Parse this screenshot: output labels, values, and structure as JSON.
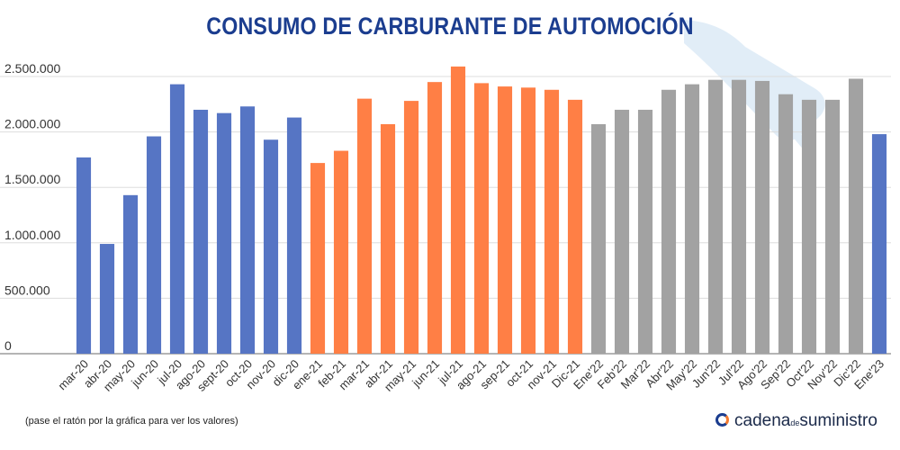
{
  "chart_data": {
    "type": "bar",
    "title": "CONSUMO DE CARBURANTE DE AUTOMOCIÓN",
    "categories": [
      "mar-20",
      "abr-20",
      "may-20",
      "jun-20",
      "jul-20",
      "ago-20",
      "sept-20",
      "oct-20",
      "nov-20",
      "dic-20",
      "ene-21",
      "feb-21",
      "mar-21",
      "abr-21",
      "may-21",
      "jun-21",
      "jul-21",
      "ago-21",
      "sep-21",
      "oct-21",
      "nov-21",
      "Dic-21",
      "Ene'22",
      "Feb'22",
      "Mar'22",
      "Abr'22",
      "May'22",
      "Jun'22",
      "Jul'22",
      "Ago'22",
      "Sep'22",
      "Oct'22",
      "Nov'22",
      "Dic'22",
      "Ene'23"
    ],
    "values": [
      1770000,
      990000,
      1430000,
      1960000,
      2430000,
      2200000,
      2170000,
      2230000,
      1930000,
      2130000,
      1720000,
      1830000,
      2300000,
      2070000,
      2280000,
      2450000,
      2590000,
      2440000,
      2410000,
      2400000,
      2380000,
      2290000,
      2070000,
      2200000,
      2200000,
      2380000,
      2430000,
      2470000,
      2470000,
      2460000,
      2340000,
      2290000,
      2290000,
      2480000,
      1980000
    ],
    "bar_colors": [
      "#5675c4",
      "#5675c4",
      "#5675c4",
      "#5675c4",
      "#5675c4",
      "#5675c4",
      "#5675c4",
      "#5675c4",
      "#5675c4",
      "#5675c4",
      "#ff7f45",
      "#ff7f45",
      "#ff7f45",
      "#ff7f45",
      "#ff7f45",
      "#ff7f45",
      "#ff7f45",
      "#ff7f45",
      "#ff7f45",
      "#ff7f45",
      "#ff7f45",
      "#ff7f45",
      "#a2a2a2",
      "#a2a2a2",
      "#a2a2a2",
      "#a2a2a2",
      "#a2a2a2",
      "#a2a2a2",
      "#a2a2a2",
      "#a2a2a2",
      "#a2a2a2",
      "#a2a2a2",
      "#a2a2a2",
      "#a2a2a2",
      "#5675c4"
    ],
    "y_ticks": [
      0,
      500000,
      1000000,
      1500000,
      2000000,
      2500000
    ],
    "y_tick_labels": [
      "0",
      "500.000",
      "1.000.000",
      "1.500.000",
      "2.000.000",
      "2.500.000"
    ],
    "ylim": [
      0,
      2500000
    ],
    "grid": true,
    "legend": "none"
  },
  "note": "(pase el ratón por la gráfica para ver los valores)",
  "brand": {
    "part1": "cadena",
    "part2": "de",
    "part3": "suministro"
  },
  "icons": {
    "watermark": "fuel-pump-nozzle-icon",
    "brand": "cadena-suministro-logo-icon"
  }
}
